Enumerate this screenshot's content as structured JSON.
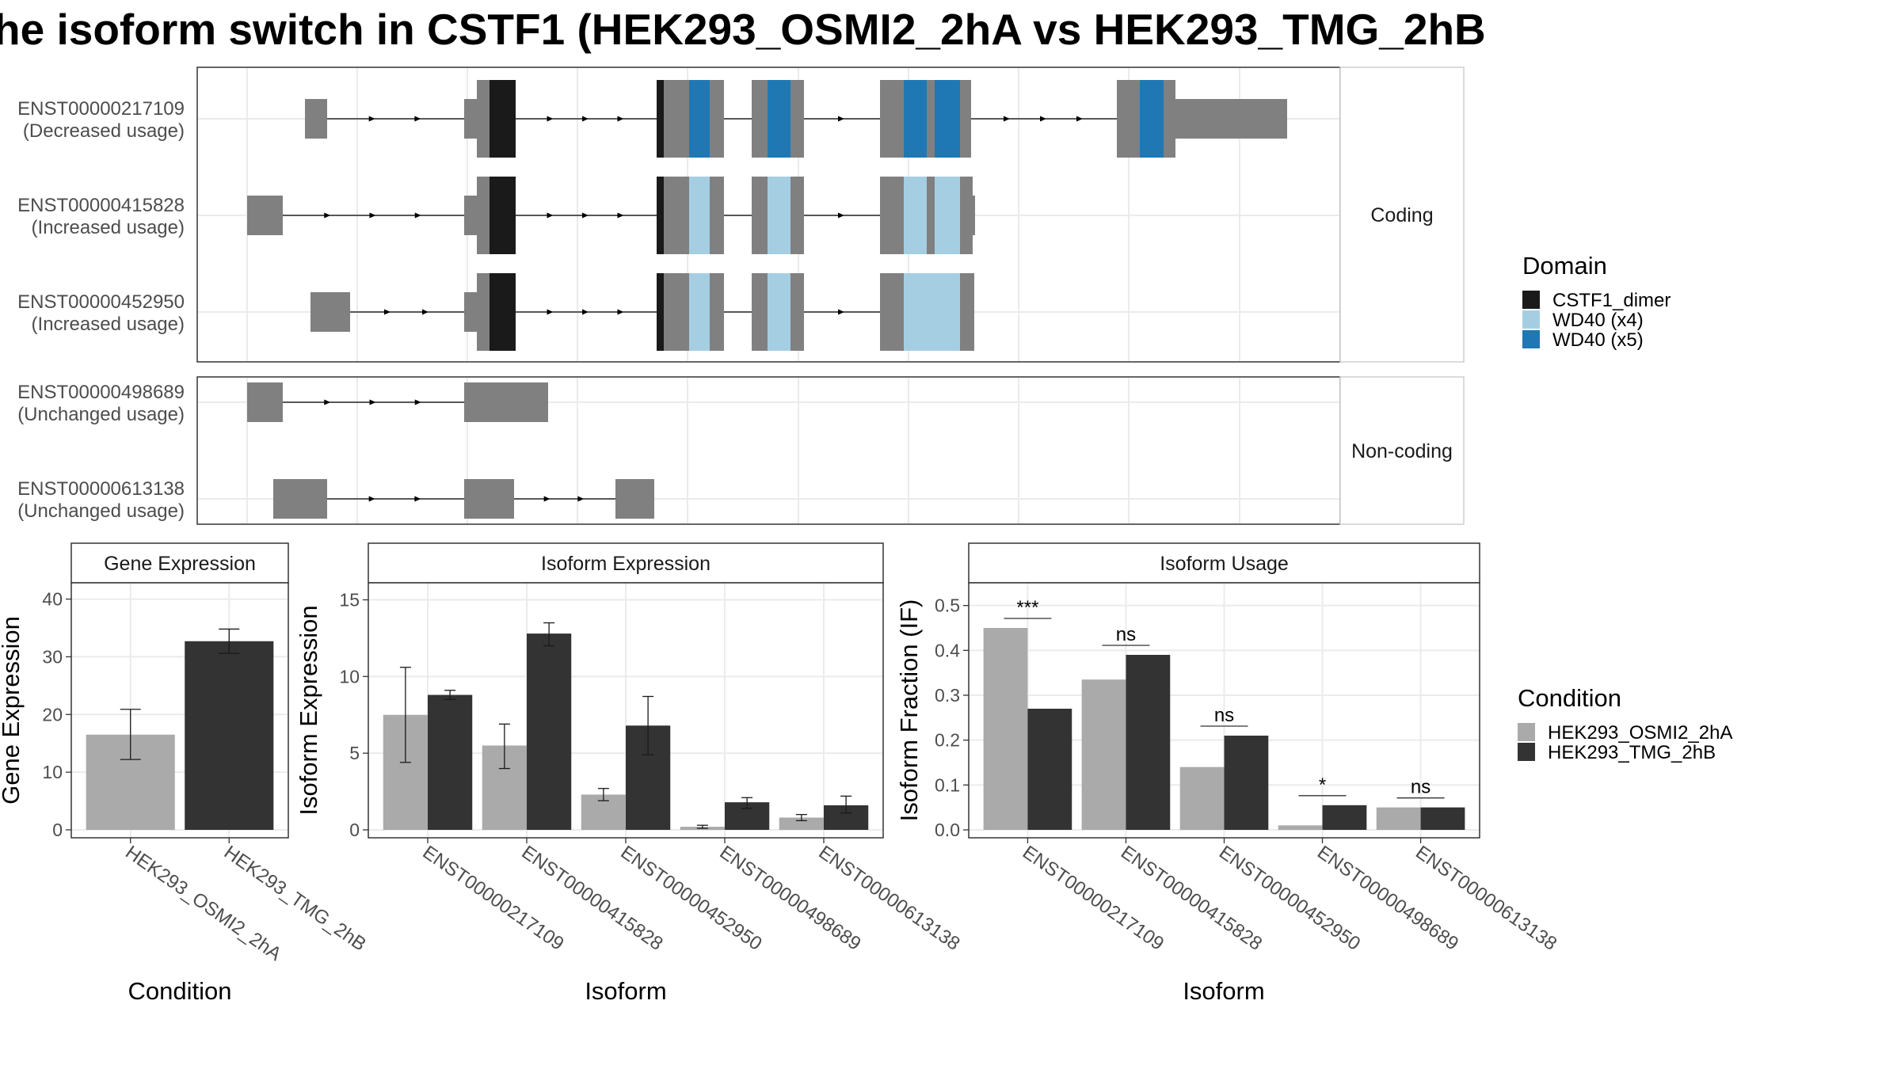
{
  "title": "he isoform switch in CSTF1 (HEK293_OSMI2_2hA vs HEK293_TMG_2hB",
  "colors": {
    "exon": "#808080",
    "cstf1_dimer": "#1a1a1a",
    "wd40_x4": "#a6cee3",
    "wd40_x5": "#1f78b4",
    "cond_a": "#aaaaaa",
    "cond_b": "#333333",
    "strip_bg": "#ffffff",
    "grid": "#ebebeb"
  },
  "structure": {
    "facets": [
      {
        "label": "Coding",
        "rows": [
          0,
          1,
          2
        ]
      },
      {
        "label": "Non-coding",
        "rows": [
          3,
          4
        ]
      }
    ],
    "transcripts": [
      {
        "id": "ENST00000217109",
        "usage": "(Decreased usage)"
      },
      {
        "id": "ENST00000415828",
        "usage": "(Increased usage)"
      },
      {
        "id": "ENST00000452950",
        "usage": "(Increased usage)"
      },
      {
        "id": "ENST00000498689",
        "usage": "(Unchanged usage)"
      },
      {
        "id": "ENST00000613138",
        "usage": "(Unchanged usage)"
      }
    ],
    "legend": {
      "title": "Domain",
      "items": [
        {
          "label": "CSTF1_dimer",
          "color": "#1a1a1a"
        },
        {
          "label": "WD40 (x4)",
          "color": "#a6cee3"
        },
        {
          "label": "WD40 (x5)",
          "color": "#1f78b4"
        }
      ]
    }
  },
  "condition_legend": {
    "title": "Condition",
    "items": [
      {
        "label": "HEK293_OSMI2_2hA",
        "color": "#aaaaaa"
      },
      {
        "label": "HEK293_TMG_2hB",
        "color": "#333333"
      }
    ]
  },
  "chart_data": [
    {
      "type": "bar",
      "title": "Gene Expression",
      "xlabel": "Condition",
      "ylabel": "Gene Expression",
      "ylim": [
        0,
        42
      ],
      "yticks": [
        0,
        10,
        20,
        30,
        40
      ],
      "categories": [
        "HEK293_OSMI2_2hA",
        "HEK293_TMG_2hB"
      ],
      "values": [
        16.5,
        32.7
      ],
      "errors": [
        [
          12.2,
          20.9
        ],
        [
          30.6,
          34.8
        ]
      ],
      "colors": [
        "#aaaaaa",
        "#333333"
      ]
    },
    {
      "type": "bar",
      "title": "Isoform Expression",
      "xlabel": "Isoform",
      "ylabel": "Isoform Expression",
      "ylim": [
        0,
        15.8
      ],
      "yticks": [
        0,
        5,
        10,
        15
      ],
      "categories": [
        "ENST00000217109",
        "ENST00000415828",
        "ENST00000452950",
        "ENST00000498689",
        "ENST00000613138"
      ],
      "series": [
        {
          "name": "HEK293_OSMI2_2hA",
          "values": [
            7.5,
            5.5,
            2.3,
            0.2,
            0.8
          ],
          "errors": [
            [
              4.4,
              10.6
            ],
            [
              4.0,
              6.9
            ],
            [
              1.9,
              2.7
            ],
            [
              0.1,
              0.3
            ],
            [
              0.6,
              1.0
            ]
          ]
        },
        {
          "name": "HEK293_TMG_2hB",
          "values": [
            8.8,
            12.8,
            6.8,
            1.8,
            1.6
          ],
          "errors": [
            [
              8.5,
              9.1
            ],
            [
              12.0,
              13.5
            ],
            [
              4.9,
              8.7
            ],
            [
              1.4,
              2.1
            ],
            [
              1.1,
              2.2
            ]
          ]
        }
      ]
    },
    {
      "type": "bar",
      "title": "Isoform Usage",
      "xlabel": "Isoform",
      "ylabel": "Isoform Fraction (IF)",
      "ylim": [
        0,
        0.54
      ],
      "yticks": [
        "0.0",
        "0.1",
        "0.2",
        "0.3",
        "0.4",
        "0.5"
      ],
      "categories": [
        "ENST00000217109",
        "ENST00000415828",
        "ENST00000452950",
        "ENST00000498689",
        "ENST00000613138"
      ],
      "series": [
        {
          "name": "HEK293_OSMI2_2hA",
          "values": [
            0.45,
            0.335,
            0.14,
            0.01,
            0.05
          ]
        },
        {
          "name": "HEK293_TMG_2hB",
          "values": [
            0.27,
            0.39,
            0.21,
            0.055,
            0.05
          ]
        }
      ],
      "significance": [
        "***",
        "ns",
        "ns",
        "*",
        "ns"
      ]
    }
  ]
}
